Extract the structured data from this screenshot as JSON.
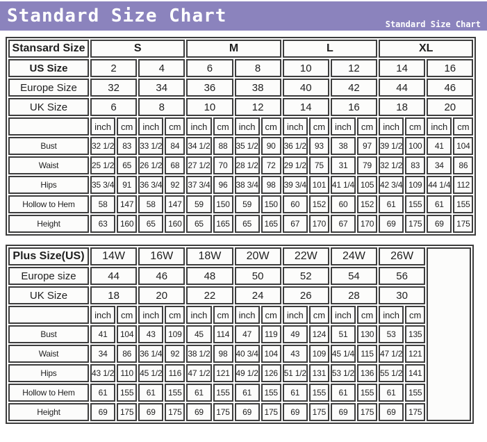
{
  "header": {
    "title": "Standard Size Chart",
    "subtitle": "Standard Size Chart"
  },
  "colors": {
    "header_bg": "#8b83bd",
    "header_text": "#ffffff",
    "grid_line": "#3d3d3d",
    "cell_bg": "#fcfcfb",
    "text": "#1f1f1f"
  },
  "unit_labels": [
    "inch",
    "cm"
  ],
  "tables": [
    {
      "id": "standard-size-table",
      "corner_label": "Stansard Size",
      "corner_bold": true,
      "group_row": {
        "labels": [
          "S",
          "M",
          "L",
          "XL"
        ],
        "colspan": 4,
        "bold": true
      },
      "info_rows": [
        {
          "label": "US Size",
          "bold": true,
          "values": [
            "2",
            "4",
            "6",
            "8",
            "10",
            "12",
            "14",
            "16"
          ]
        },
        {
          "label": "Europe Size",
          "bold": false,
          "values": [
            "32",
            "34",
            "36",
            "38",
            "40",
            "42",
            "44",
            "46"
          ]
        },
        {
          "label": "UK Size",
          "bold": false,
          "values": [
            "6",
            "8",
            "10",
            "12",
            "14",
            "16",
            "18",
            "20"
          ]
        }
      ],
      "unit_pairs": 8,
      "measure_rows": [
        {
          "label": "Bust",
          "values": [
            "32 1/2",
            "83",
            "33 1/2",
            "84",
            "34 1/2",
            "88",
            "35 1/2",
            "90",
            "36 1/2",
            "93",
            "38",
            "97",
            "39 1/2",
            "100",
            "41",
            "104"
          ]
        },
        {
          "label": "Waist",
          "values": [
            "25 1/2",
            "65",
            "26 1/2",
            "68",
            "27 1/2",
            "70",
            "28 1/2",
            "72",
            "29 1/2",
            "75",
            "31",
            "79",
            "32 1/2",
            "83",
            "34",
            "86"
          ]
        },
        {
          "label": "Hips",
          "values": [
            "35 3/4",
            "91",
            "36 3/4",
            "92",
            "37 3/4",
            "96",
            "38 3/4",
            "98",
            "39 3/4",
            "101",
            "41 1/4",
            "105",
            "42 3/4",
            "109",
            "44 1/4",
            "112"
          ]
        },
        {
          "label": "Hollow to Hem",
          "values": [
            "58",
            "147",
            "58",
            "147",
            "59",
            "150",
            "59",
            "150",
            "60",
            "152",
            "60",
            "152",
            "61",
            "155",
            "61",
            "155"
          ]
        },
        {
          "label": "Height",
          "values": [
            "63",
            "160",
            "65",
            "160",
            "65",
            "165",
            "65",
            "165",
            "67",
            "170",
            "67",
            "170",
            "69",
            "175",
            "69",
            "175"
          ]
        }
      ],
      "tail_empty_col": false
    },
    {
      "id": "plus-size-table",
      "corner_label": "Plus Size(US)",
      "corner_bold": true,
      "group_row": {
        "labels": [
          "14W",
          "16W",
          "18W",
          "20W",
          "22W",
          "24W",
          "26W"
        ],
        "colspan": 2,
        "bold": false
      },
      "info_rows": [
        {
          "label": "Europe size",
          "bold": false,
          "values": [
            "44",
            "46",
            "48",
            "50",
            "52",
            "54",
            "56"
          ]
        },
        {
          "label": "UK Size",
          "bold": false,
          "values": [
            "18",
            "20",
            "22",
            "24",
            "26",
            "28",
            "30"
          ]
        }
      ],
      "unit_pairs": 7,
      "measure_rows": [
        {
          "label": "Bust",
          "values": [
            "41",
            "104",
            "43",
            "109",
            "45",
            "114",
            "47",
            "119",
            "49",
            "124",
            "51",
            "130",
            "53",
            "135"
          ]
        },
        {
          "label": "Waist",
          "values": [
            "34",
            "86",
            "36 1/4",
            "92",
            "38 1/2",
            "98",
            "40 3/4",
            "104",
            "43",
            "109",
            "45 1/4",
            "115",
            "47 1/2",
            "121"
          ]
        },
        {
          "label": "Hips",
          "values": [
            "43 1/2",
            "110",
            "45 1/2",
            "116",
            "47 1/2",
            "121",
            "49 1/2",
            "126",
            "51 1/2",
            "131",
            "53 1/2",
            "136",
            "55 1/2",
            "141"
          ]
        },
        {
          "label": "Hollow to Hem",
          "values": [
            "61",
            "155",
            "61",
            "155",
            "61",
            "155",
            "61",
            "155",
            "61",
            "155",
            "61",
            "155",
            "61",
            "155"
          ]
        },
        {
          "label": "Height",
          "values": [
            "69",
            "175",
            "69",
            "175",
            "69",
            "175",
            "69",
            "175",
            "69",
            "175",
            "69",
            "175",
            "69",
            "175"
          ]
        }
      ],
      "tail_empty_col": true
    }
  ]
}
